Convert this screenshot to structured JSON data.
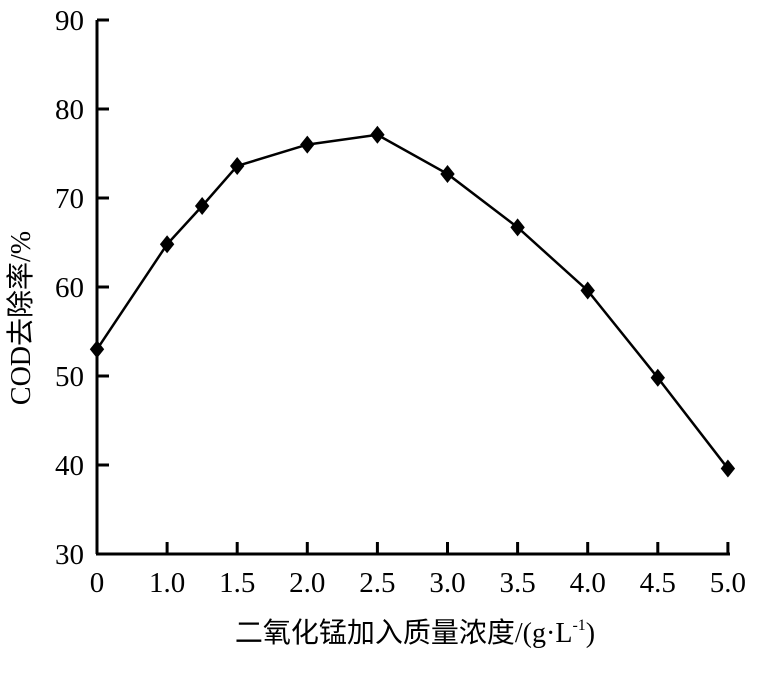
{
  "chart_data": {
    "type": "line",
    "title": "",
    "xlabel": "二氧化锰加入质量浓度/(g·L-1)",
    "xlabel_main": "二氧化锰加入质量浓度/(g·L",
    "xlabel_sup": "-1",
    "xlabel_end": ")",
    "ylabel": "COD去除率/%",
    "ylim": [
      30,
      90
    ],
    "yticks": [
      "30",
      "40",
      "50",
      "60",
      "70",
      "80",
      "90"
    ],
    "xticks": [
      "0",
      "1.0",
      "1.5",
      "2.0",
      "2.5",
      "3.0",
      "3.5",
      "4.0",
      "4.5",
      "5.0"
    ],
    "xtick_values": [
      0,
      1.0,
      1.5,
      2.0,
      2.5,
      3.0,
      3.5,
      4.0,
      4.5,
      5.0
    ],
    "grid": false,
    "marker": "diamond",
    "color": "#000000",
    "series": [
      {
        "x": [
          0,
          1.0,
          1.25,
          1.5,
          2.0,
          2.5,
          3.0,
          3.5,
          4.0,
          4.5,
          5.0
        ],
        "y": [
          53.0,
          64.8,
          69.1,
          73.6,
          76.0,
          77.1,
          72.7,
          66.7,
          59.6,
          49.8,
          39.6
        ]
      }
    ]
  }
}
